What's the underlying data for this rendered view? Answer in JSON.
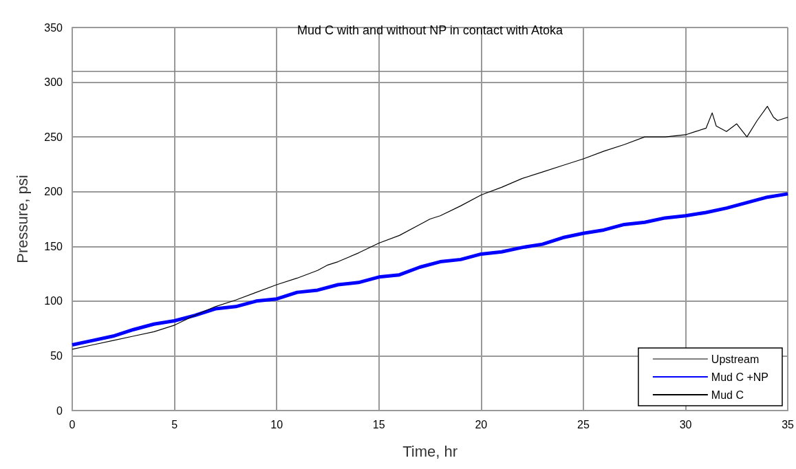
{
  "chart_data": {
    "type": "line",
    "title": "Mud C with and without NP in contact with Atoka",
    "xlabel": "Time, hr",
    "ylabel": "Pressure, psi",
    "xlim": [
      0,
      35
    ],
    "ylim": [
      0,
      350
    ],
    "xticks": [
      0,
      5,
      10,
      15,
      20,
      25,
      30,
      35
    ],
    "yticks": [
      0,
      50,
      100,
      150,
      200,
      250,
      300,
      350
    ],
    "grid": true,
    "legend": "bottom right",
    "marker": "none",
    "series": [
      {
        "name": "Upstream",
        "color": "#808080",
        "x": [
          0,
          35
        ],
        "values": [
          310,
          310
        ]
      },
      {
        "name": "Mud C +NP",
        "color": "#0000ff",
        "x": [
          0,
          1,
          2,
          3,
          4,
          5,
          6,
          7,
          8,
          9,
          10,
          11,
          12,
          13,
          14,
          15,
          16,
          17,
          18,
          19,
          20,
          21,
          22,
          23,
          24,
          25,
          26,
          27,
          28,
          29,
          30,
          31,
          32,
          33,
          34,
          35
        ],
        "values": [
          60,
          64,
          68,
          74,
          79,
          82,
          87,
          93,
          95,
          100,
          102,
          108,
          110,
          115,
          117,
          122,
          124,
          131,
          136,
          138,
          143,
          145,
          149,
          152,
          158,
          162,
          165,
          170,
          172,
          176,
          178,
          181,
          185,
          190,
          195,
          198
        ]
      },
      {
        "name": "Mud C",
        "color": "#000000",
        "x": [
          0,
          1,
          2,
          3,
          4,
          5,
          6,
          7,
          8,
          9,
          10,
          11,
          12,
          12.5,
          13,
          14,
          15,
          16,
          17,
          17.5,
          18,
          19,
          20,
          21,
          22,
          23,
          24,
          25,
          26,
          27,
          28,
          29,
          30,
          30.5,
          31,
          31.3,
          31.5,
          32,
          32.5,
          33,
          33.5,
          34,
          34.3,
          34.5,
          35
        ],
        "values": [
          56,
          60,
          64,
          68,
          72,
          78,
          87,
          95,
          101,
          108,
          115,
          121,
          128,
          133,
          136,
          144,
          153,
          160,
          170,
          175,
          178,
          187,
          197,
          204,
          212,
          218,
          224,
          230,
          237,
          243,
          250,
          250,
          252,
          255,
          258,
          272,
          260,
          255,
          262,
          250,
          265,
          278,
          268,
          265,
          268
        ]
      }
    ]
  }
}
